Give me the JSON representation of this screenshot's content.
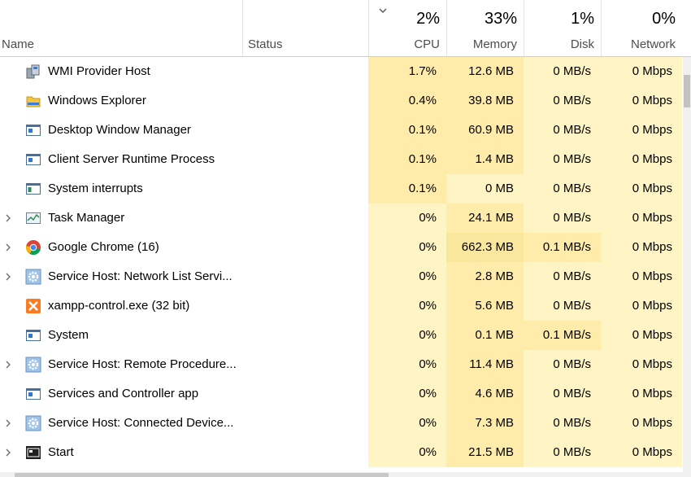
{
  "header": {
    "name_label": "Name",
    "status_label": "Status",
    "cpu_pct": "2%",
    "cpu_label": "CPU",
    "mem_pct": "33%",
    "mem_label": "Memory",
    "disk_pct": "1%",
    "disk_label": "Disk",
    "net_pct": "0%",
    "net_label": "Network"
  },
  "processes": [
    {
      "name": "WMI Provider Host",
      "icon": "wmi-host-icon",
      "expandable": false,
      "cpu": "1.7%",
      "memory": "12.6 MB",
      "disk": "0 MB/s",
      "network": "0 Mbps"
    },
    {
      "name": "Windows Explorer",
      "icon": "folder-icon",
      "expandable": false,
      "cpu": "0.4%",
      "memory": "39.8 MB",
      "disk": "0 MB/s",
      "network": "0 Mbps"
    },
    {
      "name": "Desktop Window Manager",
      "icon": "window-app-icon",
      "expandable": false,
      "cpu": "0.1%",
      "memory": "60.9 MB",
      "disk": "0 MB/s",
      "network": "0 Mbps"
    },
    {
      "name": "Client Server Runtime Process",
      "icon": "window-app-icon",
      "expandable": false,
      "cpu": "0.1%",
      "memory": "1.4 MB",
      "disk": "0 MB/s",
      "network": "0 Mbps"
    },
    {
      "name": "System interrupts",
      "icon": "system-interrupts-icon",
      "expandable": false,
      "cpu": "0.1%",
      "memory": "0 MB",
      "disk": "0 MB/s",
      "network": "0 Mbps"
    },
    {
      "name": "Task Manager",
      "icon": "task-manager-icon",
      "expandable": true,
      "cpu": "0%",
      "memory": "24.1 MB",
      "disk": "0 MB/s",
      "network": "0 Mbps"
    },
    {
      "name": "Google Chrome (16)",
      "icon": "chrome-icon",
      "expandable": true,
      "cpu": "0%",
      "memory": "662.3 MB",
      "disk": "0.1 MB/s",
      "network": "0 Mbps"
    },
    {
      "name": "Service Host: Network List Servi...",
      "icon": "gear-icon",
      "expandable": true,
      "cpu": "0%",
      "memory": "2.8 MB",
      "disk": "0 MB/s",
      "network": "0 Mbps"
    },
    {
      "name": "xampp-control.exe (32 bit)",
      "icon": "xampp-icon",
      "expandable": false,
      "cpu": "0%",
      "memory": "5.6 MB",
      "disk": "0 MB/s",
      "network": "0 Mbps"
    },
    {
      "name": "System",
      "icon": "window-app-icon",
      "expandable": false,
      "cpu": "0%",
      "memory": "0.1 MB",
      "disk": "0.1 MB/s",
      "network": "0 Mbps"
    },
    {
      "name": "Service Host: Remote Procedure...",
      "icon": "gear-icon",
      "expandable": true,
      "cpu": "0%",
      "memory": "11.4 MB",
      "disk": "0 MB/s",
      "network": "0 Mbps"
    },
    {
      "name": "Services and Controller app",
      "icon": "window-app-icon",
      "expandable": false,
      "cpu": "0%",
      "memory": "4.6 MB",
      "disk": "0 MB/s",
      "network": "0 Mbps"
    },
    {
      "name": "Service Host: Connected Device...",
      "icon": "gear-icon",
      "expandable": true,
      "cpu": "0%",
      "memory": "7.3 MB",
      "disk": "0 MB/s",
      "network": "0 Mbps"
    },
    {
      "name": "Start",
      "icon": "start-icon",
      "expandable": true,
      "cpu": "0%",
      "memory": "21.5 MB",
      "disk": "0 MB/s",
      "network": "0 Mbps"
    }
  ],
  "colors": {
    "heat_low": "#fff4c4",
    "heat_mid": "#ffecab",
    "heat_high": "#f9e79e",
    "accent": "#2b78d6"
  }
}
